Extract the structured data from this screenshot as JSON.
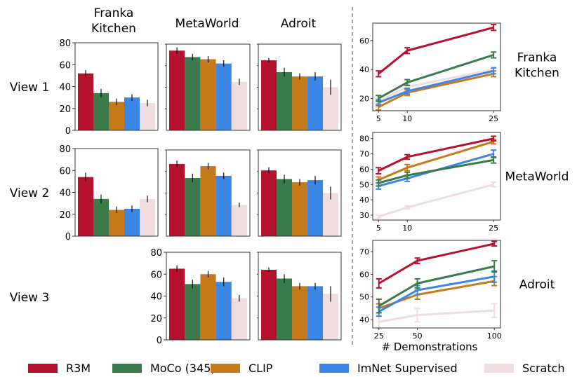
{
  "colors": {
    "R3M": "#b5122e",
    "MoCo (345)": "#3b7a4a",
    "CLIP": "#c57a1b",
    "ImNet Supervised": "#3c86e6",
    "Scratch": "#f0dde0"
  },
  "column_titles": [
    [
      "Franka",
      "Kitchen"
    ],
    [
      "MetaWorld"
    ],
    [
      "Adroit"
    ]
  ],
  "row_labels": [
    "View 1",
    "View 2",
    "View 3"
  ],
  "legend": [
    "R3M",
    "MoCo (345)",
    "CLIP",
    "ImNet Supervised",
    "Scratch"
  ],
  "line_titles": [
    [
      "Franka",
      "Kitchen"
    ],
    [
      "MetaWorld"
    ],
    [
      "Adroit"
    ]
  ],
  "x_axis_label": "# Demonstrations",
  "chart_data": [
    {
      "type": "bar",
      "env": "Franka Kitchen",
      "view": "View 1",
      "ylim": [
        0,
        80
      ],
      "yticks": [
        0,
        20,
        40,
        60,
        80
      ],
      "values": [
        52,
        34,
        26,
        30,
        25
      ],
      "errors": [
        3,
        4,
        3,
        3,
        3
      ]
    },
    {
      "type": "bar",
      "env": "MetaWorld",
      "view": "View 1",
      "ylim": [
        0,
        80
      ],
      "yticks": [],
      "values": [
        74,
        68,
        66,
        62,
        45
      ],
      "errors": [
        3,
        3,
        3,
        3,
        3
      ]
    },
    {
      "type": "bar",
      "env": "Adroit",
      "view": "View 1",
      "ylim": [
        0,
        80
      ],
      "yticks": [],
      "values": [
        65,
        54,
        50,
        50,
        40
      ],
      "errors": [
        2,
        4,
        3,
        4,
        7
      ]
    },
    {
      "type": "bar",
      "env": "Franka Kitchen",
      "view": "View 2",
      "ylim": [
        0,
        80
      ],
      "yticks": [
        0,
        20,
        40,
        60,
        80
      ],
      "values": [
        54,
        34,
        24,
        25,
        34
      ],
      "errors": [
        4,
        4,
        3,
        3,
        3
      ]
    },
    {
      "type": "bar",
      "env": "MetaWorld",
      "view": "View 2",
      "ylim": [
        0,
        80
      ],
      "yticks": [],
      "values": [
        67,
        54,
        65,
        56,
        29
      ],
      "errors": [
        3,
        4,
        3,
        3,
        2
      ]
    },
    {
      "type": "bar",
      "env": "Adroit",
      "view": "View 2",
      "ylim": [
        0,
        80
      ],
      "yticks": [],
      "values": [
        61,
        53,
        50,
        52,
        40
      ],
      "errors": [
        3,
        4,
        3,
        4,
        6
      ]
    },
    {
      "type": "bar",
      "env": "MetaWorld",
      "view": "View 3",
      "ylim": [
        0,
        80
      ],
      "yticks": [
        0,
        20,
        40,
        60,
        80
      ],
      "values": [
        65,
        51,
        60,
        53,
        38
      ],
      "errors": [
        3,
        4,
        3,
        4,
        3
      ]
    },
    {
      "type": "bar",
      "env": "Adroit",
      "view": "View 3",
      "ylim": [
        0,
        80
      ],
      "yticks": [],
      "values": [
        64,
        56,
        49,
        49,
        42
      ],
      "errors": [
        2,
        4,
        3,
        3,
        7
      ]
    },
    {
      "type": "line",
      "env": "Franka Kitchen",
      "x": [
        5,
        10,
        25
      ],
      "xlim": [
        4,
        26.2
      ],
      "xticks": [
        5,
        10,
        25
      ],
      "ylim": [
        11.5,
        72
      ],
      "yticks": [
        20,
        40,
        60
      ],
      "series": [
        {
          "name": "R3M",
          "values": [
            37,
            53,
            69
          ],
          "errors": [
            2,
            2,
            2
          ]
        },
        {
          "name": "MoCo (345)",
          "values": [
            20,
            31,
            50
          ],
          "errors": [
            2,
            2,
            2
          ]
        },
        {
          "name": "CLIP",
          "values": [
            14,
            24,
            37
          ],
          "errors": [
            2,
            2,
            2
          ]
        },
        {
          "name": "ImNet Supervised",
          "values": [
            17,
            25,
            39
          ],
          "errors": [
            2,
            2,
            2
          ]
        },
        {
          "name": "Scratch",
          "values": [
            18,
            28,
            40
          ],
          "errors": [
            2,
            2,
            2
          ]
        }
      ]
    },
    {
      "type": "line",
      "env": "MetaWorld",
      "x": [
        5,
        10,
        25
      ],
      "xlim": [
        4,
        26.2
      ],
      "xticks": [
        5,
        10,
        25
      ],
      "ylim": [
        26.8,
        84
      ],
      "yticks": [
        30,
        40,
        50,
        60,
        70,
        80
      ],
      "series": [
        {
          "name": "R3M",
          "values": [
            59,
            68,
            80
          ],
          "errors": [
            2,
            1.5,
            1.5
          ]
        },
        {
          "name": "MoCo (345)",
          "values": [
            51,
            56,
            66
          ],
          "errors": [
            2,
            2,
            2
          ]
        },
        {
          "name": "CLIP",
          "values": [
            53,
            61,
            78
          ],
          "errors": [
            2,
            2,
            1.5
          ]
        },
        {
          "name": "ImNet Supervised",
          "values": [
            49,
            54,
            70
          ],
          "errors": [
            2,
            2,
            2.5
          ]
        },
        {
          "name": "Scratch",
          "values": [
            29,
            35,
            50
          ],
          "errors": [
            1,
            1,
            1.5
          ]
        }
      ]
    },
    {
      "type": "line",
      "env": "Adroit",
      "x": [
        25,
        50,
        100
      ],
      "xlim": [
        21,
        104
      ],
      "xticks": [
        25,
        50,
        100
      ],
      "ylim": [
        36.3,
        75
      ],
      "yticks": [
        40,
        50,
        60,
        70
      ],
      "series": [
        {
          "name": "R3M",
          "values": [
            56,
            66,
            73.5
          ],
          "errors": [
            2,
            1.2,
            1
          ]
        },
        {
          "name": "MoCo (345)",
          "values": [
            46,
            56,
            63.5
          ],
          "errors": [
            3,
            2,
            2.5
          ]
        },
        {
          "name": "CLIP",
          "values": [
            45,
            51,
            57
          ],
          "errors": [
            2,
            2,
            2
          ]
        },
        {
          "name": "ImNet Supervised",
          "values": [
            43.5,
            53,
            59
          ],
          "errors": [
            2,
            2,
            2.5
          ]
        },
        {
          "name": "Scratch",
          "values": [
            39,
            42,
            44
          ],
          "errors": [
            3,
            3,
            3
          ]
        }
      ]
    }
  ]
}
